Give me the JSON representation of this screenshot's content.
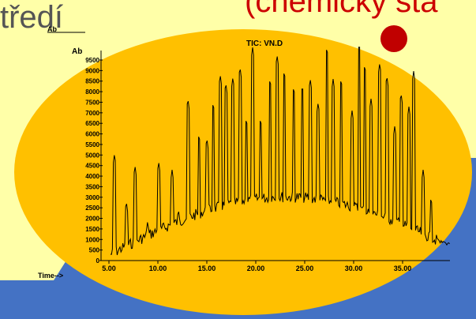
{
  "slide": {
    "title_left": "tředí",
    "title_right": "(chemický sta"
  },
  "colors": {
    "background": "#4472c4",
    "panel": "#ffffa8",
    "ellipse": "#ffc000",
    "dot": "#c00000",
    "trace": "#000000"
  },
  "chromatogram": {
    "header_small": "Ab",
    "top_label": "TIC: VN.D",
    "y_label": "Ab",
    "x_label": "Time-->",
    "y_ticks": [
      "9500",
      "9000",
      "8500",
      "8000",
      "7500",
      "7000",
      "6500",
      "6000",
      "5500",
      "5000",
      "4500",
      "4000",
      "3500",
      "3000",
      "2500",
      "2000",
      "1500",
      "1000",
      "500",
      "0"
    ],
    "x_ticks": [
      "5.00",
      "10.00",
      "15.00",
      "20.00",
      "25.00",
      "30.00",
      "35.00"
    ]
  }
}
